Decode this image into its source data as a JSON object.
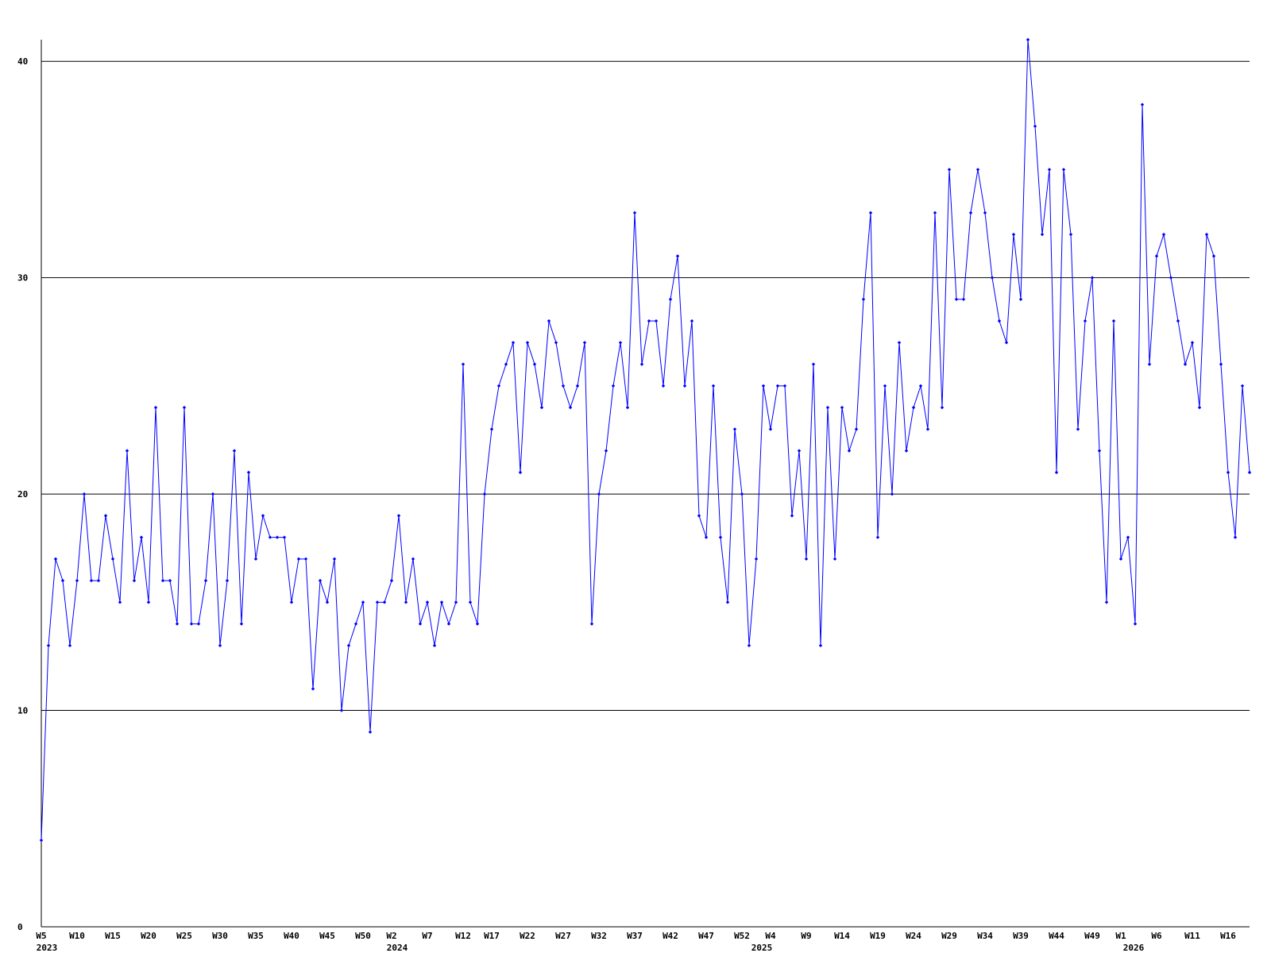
{
  "chart_data": {
    "type": "line",
    "color": "#0000ff",
    "ylim": [
      0,
      41
    ],
    "yticks": [
      0,
      10,
      20,
      30,
      40
    ],
    "grid": true,
    "categories": [
      "W5",
      null,
      null,
      null,
      null,
      "W10",
      null,
      null,
      null,
      null,
      "W15",
      null,
      null,
      null,
      null,
      "W20",
      null,
      null,
      null,
      null,
      "W25",
      null,
      null,
      null,
      null,
      "W30",
      null,
      null,
      null,
      null,
      "W35",
      null,
      null,
      null,
      null,
      "W40",
      null,
      null,
      null,
      null,
      "W45",
      null,
      null,
      null,
      null,
      "W50",
      null,
      null,
      null,
      "W2",
      null,
      null,
      null,
      null,
      "W7",
      null,
      null,
      null,
      null,
      "W12",
      null,
      null,
      null,
      "W17",
      null,
      null,
      null,
      null,
      "W22",
      null,
      null,
      null,
      null,
      "W27",
      null,
      null,
      null,
      null,
      "W32",
      null,
      null,
      null,
      null,
      "W37",
      null,
      null,
      null,
      null,
      "W42",
      null,
      null,
      null,
      null,
      "W47",
      null,
      null,
      null,
      null,
      "W52",
      null,
      null,
      null,
      "W4",
      null,
      null,
      null,
      null,
      "W9",
      null,
      null,
      null,
      null,
      "W14",
      null,
      null,
      null,
      null,
      "W19",
      null,
      null,
      null,
      null,
      "W24",
      null,
      null,
      null,
      null,
      "W29",
      null,
      null,
      null,
      null,
      "W34",
      null,
      null,
      null,
      null,
      "W39",
      null,
      null,
      null,
      null,
      "W44",
      null,
      null,
      null,
      null,
      "W49",
      null,
      null,
      null,
      "W1",
      null,
      null,
      null,
      null,
      "W6",
      null,
      null,
      null,
      null,
      "W11",
      null,
      null,
      null,
      null,
      "W16",
      null,
      null,
      null
    ],
    "years": [
      "2023",
      null,
      null,
      null,
      null,
      null,
      null,
      null,
      null,
      null,
      null,
      null,
      null,
      null,
      null,
      null,
      null,
      null,
      null,
      null,
      null,
      null,
      null,
      null,
      null,
      null,
      null,
      null,
      null,
      null,
      null,
      null,
      null,
      null,
      null,
      null,
      null,
      null,
      null,
      null,
      null,
      null,
      null,
      null,
      null,
      null,
      null,
      null,
      null,
      "2024",
      null,
      null,
      null,
      null,
      null,
      null,
      null,
      null,
      null,
      null,
      null,
      null,
      null,
      null,
      null,
      null,
      null,
      null,
      null,
      null,
      null,
      null,
      null,
      null,
      null,
      null,
      null,
      null,
      null,
      null,
      null,
      null,
      null,
      null,
      null,
      null,
      null,
      null,
      null,
      null,
      null,
      null,
      null,
      null,
      null,
      null,
      null,
      null,
      null,
      null,
      "2025",
      null,
      null,
      null,
      null,
      null,
      null,
      null,
      null,
      null,
      null,
      null,
      null,
      null,
      null,
      null,
      null,
      null,
      null,
      null,
      null,
      null,
      null,
      null,
      null,
      null,
      null,
      null,
      null,
      null,
      null,
      null,
      null,
      null,
      null,
      null,
      null,
      null,
      null,
      null,
      null,
      null,
      null,
      null,
      null,
      null,
      null,
      null,
      null,
      null,
      null,
      null,
      "2026",
      null,
      null,
      null,
      null,
      null,
      null,
      null,
      null,
      null,
      null,
      null,
      null,
      null,
      null,
      null,
      null,
      null
    ],
    "values": [
      4,
      13,
      17,
      16,
      13,
      16,
      20,
      16,
      16,
      19,
      17,
      15,
      22,
      16,
      18,
      15,
      24,
      16,
      16,
      14,
      24,
      14,
      14,
      16,
      20,
      13,
      16,
      22,
      14,
      21,
      17,
      19,
      18,
      18,
      18,
      15,
      17,
      17,
      11,
      16,
      15,
      17,
      10,
      13,
      14,
      15,
      9,
      15,
      15,
      16,
      19,
      15,
      17,
      14,
      15,
      13,
      15,
      14,
      15,
      26,
      15,
      14,
      20,
      23,
      25,
      26,
      27,
      21,
      27,
      26,
      24,
      28,
      27,
      25,
      24,
      25,
      27,
      14,
      20,
      22,
      25,
      27,
      24,
      33,
      26,
      28,
      28,
      25,
      29,
      31,
      25,
      28,
      19,
      18,
      25,
      18,
      15,
      23,
      20,
      13,
      17,
      25,
      23,
      25,
      25,
      19,
      22,
      17,
      26,
      13,
      24,
      17,
      24,
      22,
      23,
      29,
      33,
      18,
      25,
      20,
      27,
      22,
      24,
      25,
      23,
      33,
      24,
      35,
      29,
      29,
      33,
      35,
      33,
      30,
      28,
      27,
      32,
      29,
      41,
      37,
      32,
      35,
      21,
      35,
      32,
      23,
      28,
      30,
      22,
      15,
      28,
      17,
      18,
      14,
      38,
      26,
      31,
      32,
      30,
      28,
      26,
      27,
      24,
      32,
      31,
      26,
      21,
      18,
      25,
      21
    ]
  }
}
